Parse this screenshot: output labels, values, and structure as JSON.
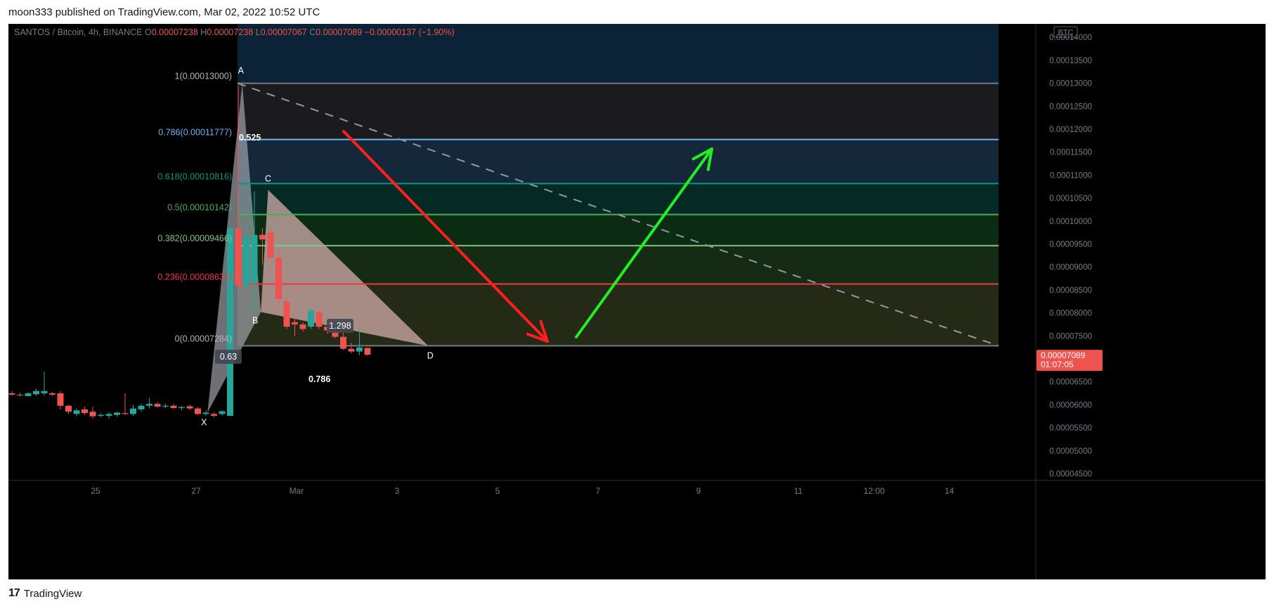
{
  "header": {
    "published_line": "moon333 published on TradingView.com, Mar 02, 2022 10:52 UTC"
  },
  "footer": {
    "logo_mark": "17",
    "brand": "TradingView"
  },
  "chart_data": {
    "type": "candlestick",
    "symbol_line": {
      "symbol": "SANTOS / Bitcoin, 4h, BINANCE",
      "o_label": "O",
      "o_value": "0.00007238",
      "h_label": "H",
      "h_value": "0.00007238",
      "l_label": "L",
      "l_value": "0.00007067",
      "c_label": "C",
      "c_value": "0.00007089",
      "change": "−0.00000137 (−1.90%)"
    },
    "currency_badge": "BTC",
    "y_ticks": [
      4.5e-05,
      5e-05,
      5.5e-05,
      6e-05,
      6.5e-05,
      7e-05,
      7.5e-05,
      8e-05,
      8.5e-05,
      9e-05,
      9.5e-05,
      0.0001,
      0.000105,
      0.00011,
      0.000115,
      0.00012,
      0.000125,
      0.00013,
      0.000135,
      0.00014
    ],
    "y_tick_labels": [
      "0.00004500",
      "0.00005000",
      "0.00005500",
      "0.00006000",
      "0.00006500",
      "0.00007000",
      "0.00007500",
      "0.00008000",
      "0.00008500",
      "0.00009000",
      "0.00009500",
      "0.00010000",
      "0.00010500",
      "0.00011000",
      "0.00011500",
      "0.00012000",
      "0.00012500",
      "0.00013000",
      "0.00013500",
      "0.00014000"
    ],
    "x_tick_labels": [
      "25",
      "27",
      "Mar",
      "3",
      "5",
      "7",
      "9",
      "11",
      "12:00",
      "14"
    ],
    "last_price": {
      "value": "0.00007089",
      "countdown": "01:07:05",
      "price": 7.089e-05
    },
    "fib_levels": [
      {
        "ratio": "1",
        "label": "1(0.00013000)",
        "price": 0.00013,
        "color": "#787b86"
      },
      {
        "ratio": "0.786",
        "label": "0.786(0.00011777)",
        "price": 0.00011777,
        "color": "#64b5f6"
      },
      {
        "ratio": "0.618",
        "label": "0.618(0.00010816)",
        "price": 0.00010816,
        "color": "#089981"
      },
      {
        "ratio": "0.5",
        "label": "0.5(0.00010142)",
        "price": 0.00010142,
        "color": "#4caf50"
      },
      {
        "ratio": "0.382",
        "label": "0.382(0.00009466)",
        "price": 9.466e-05,
        "color": "#81c784"
      },
      {
        "ratio": "0.236",
        "label": "0.236(0.00008631)",
        "price": 8.631e-05,
        "color": "#f23645"
      },
      {
        "ratio": "0",
        "label": "0(0.00007284)",
        "price": 7.284e-05,
        "color": "#787b86"
      }
    ],
    "pattern_points": [
      {
        "name": "X",
        "label": "X",
        "price": 5.83e-05
      },
      {
        "name": "A",
        "label": "A",
        "price": 0.00013
      },
      {
        "name": "B",
        "label": "B",
        "price": 8.02e-05
      },
      {
        "name": "C",
        "label": "C",
        "price": 0.0001068
      },
      {
        "name": "D",
        "label": "D",
        "price": 7.284e-05
      }
    ],
    "pattern_ratios": [
      {
        "label": "0.525"
      },
      {
        "label": "0.63"
      },
      {
        "label": "1.298"
      },
      {
        "label": "0.786"
      }
    ],
    "candles": [
      {
        "o": 6.25e-05,
        "h": 6.3e-05,
        "l": 6.2e-05,
        "c": 6.22e-05
      },
      {
        "o": 6.22e-05,
        "h": 6.26e-05,
        "l": 6.19e-05,
        "c": 6.21e-05
      },
      {
        "o": 6.19e-05,
        "h": 6.28e-05,
        "l": 6.18e-05,
        "c": 6.25e-05
      },
      {
        "o": 6.23e-05,
        "h": 6.35e-05,
        "l": 6.2e-05,
        "c": 6.3e-05
      },
      {
        "o": 6.25e-05,
        "h": 6.72e-05,
        "l": 6.2e-05,
        "c": 6.3e-05
      },
      {
        "o": 6.25e-05,
        "h": 6.28e-05,
        "l": 6.2e-05,
        "c": 6.22e-05
      },
      {
        "o": 6.25e-05,
        "h": 6.3e-05,
        "l": 5.9e-05,
        "c": 5.98e-05
      },
      {
        "o": 5.98e-05,
        "h": 6e-05,
        "l": 5.8e-05,
        "c": 5.85e-05
      },
      {
        "o": 5.8e-05,
        "h": 5.92e-05,
        "l": 5.75e-05,
        "c": 5.88e-05
      },
      {
        "o": 5.9e-05,
        "h": 5.96e-05,
        "l": 5.78e-05,
        "c": 5.82e-05
      },
      {
        "o": 5.85e-05,
        "h": 5.96e-05,
        "l": 5.7e-05,
        "c": 5.75e-05
      },
      {
        "o": 5.76e-05,
        "h": 5.82e-05,
        "l": 5.73e-05,
        "c": 5.78e-05
      },
      {
        "o": 5.76e-05,
        "h": 5.84e-05,
        "l": 5.7e-05,
        "c": 5.8e-05
      },
      {
        "o": 5.78e-05,
        "h": 5.85e-05,
        "l": 5.74e-05,
        "c": 5.83e-05
      },
      {
        "o": 5.82e-05,
        "h": 6.25e-05,
        "l": 5.78e-05,
        "c": 5.8e-05
      },
      {
        "o": 5.8e-05,
        "h": 6e-05,
        "l": 5.76e-05,
        "c": 5.92e-05
      },
      {
        "o": 5.9e-05,
        "h": 6.03e-05,
        "l": 5.85e-05,
        "c": 5.98e-05
      },
      {
        "o": 5.98e-05,
        "h": 6.15e-05,
        "l": 5.92e-05,
        "c": 6.02e-05
      },
      {
        "o": 6.02e-05,
        "h": 6.06e-05,
        "l": 5.94e-05,
        "c": 5.96e-05
      },
      {
        "o": 5.96e-05,
        "h": 6.03e-05,
        "l": 5.93e-05,
        "c": 5.98e-05
      },
      {
        "o": 5.98e-05,
        "h": 6.02e-05,
        "l": 5.91e-05,
        "c": 5.93e-05
      },
      {
        "o": 5.93e-05,
        "h": 5.98e-05,
        "l": 5.88e-05,
        "c": 5.95e-05
      },
      {
        "o": 5.97e-05,
        "h": 6e-05,
        "l": 5.88e-05,
        "c": 5.92e-05
      },
      {
        "o": 5.92e-05,
        "h": 5.95e-05,
        "l": 5.78e-05,
        "c": 5.8e-05
      },
      {
        "o": 5.8e-05,
        "h": 5.88e-05,
        "l": 5.76e-05,
        "c": 5.83e-05
      },
      {
        "o": 5.8e-05,
        "h": 5.84e-05,
        "l": 5.73e-05,
        "c": 5.76e-05
      },
      {
        "o": 5.8e-05,
        "h": 5.88e-05,
        "l": 5.77e-05,
        "c": 5.86e-05
      },
      {
        "o": 5.76e-05,
        "h": 9.85e-05,
        "l": 5.75e-05,
        "c": 9.85e-05
      },
      {
        "o": 9.85e-05,
        "h": 0.0001295,
        "l": 8.55e-05,
        "c": 8.6e-05
      },
      {
        "o": 8.6e-05,
        "h": 9.9e-05,
        "l": 8.5e-05,
        "c": 9.65e-05
      },
      {
        "o": 8.65e-05,
        "h": 0.0001065,
        "l": 8.02e-05,
        "c": 9.7e-05
      },
      {
        "o": 9.7e-05,
        "h": 9.85e-05,
        "l": 9.05e-05,
        "c": 9.6e-05
      },
      {
        "o": 9.75e-05,
        "h": 9.85e-05,
        "l": 9.15e-05,
        "c": 9.2e-05
      },
      {
        "o": 9.2e-05,
        "h": 9.4e-05,
        "l": 8.2e-05,
        "c": 8.3e-05
      },
      {
        "o": 8.25e-05,
        "h": 8.35e-05,
        "l": 7.65e-05,
        "c": 7.7e-05
      },
      {
        "o": 7.8e-05,
        "h": 7.9e-05,
        "l": 7.5e-05,
        "c": 7.75e-05
      },
      {
        "o": 7.75e-05,
        "h": 7.8e-05,
        "l": 7.6e-05,
        "c": 7.65e-05
      },
      {
        "o": 7.7e-05,
        "h": 8.1e-05,
        "l": 7.65e-05,
        "c": 8.05e-05
      },
      {
        "o": 8.02e-05,
        "h": 8.05e-05,
        "l": 7.65e-05,
        "c": 7.7e-05
      },
      {
        "o": 7.7e-05,
        "h": 7.75e-05,
        "l": 7.55e-05,
        "c": 7.62e-05
      },
      {
        "o": 7.6e-05,
        "h": 7.75e-05,
        "l": 7.45e-05,
        "c": 7.48e-05
      },
      {
        "o": 7.48e-05,
        "h": 7.6e-05,
        "l": 7.2e-05,
        "c": 7.22e-05
      },
      {
        "o": 7.22e-05,
        "h": 7.35e-05,
        "l": 7.12e-05,
        "c": 7.16e-05
      },
      {
        "o": 7.16e-05,
        "h": 7.65e-05,
        "l": 7.08e-05,
        "c": 7.25e-05
      },
      {
        "o": 7.24e-05,
        "h": 7.24e-05,
        "l": 7.07e-05,
        "c": 7.09e-05
      }
    ],
    "annotations": [
      {
        "type": "arrow-down",
        "color": "#ff1e1e"
      },
      {
        "type": "arrow-up",
        "color": "#22ee22"
      },
      {
        "type": "dashed-trendline",
        "color": "#787b86"
      }
    ],
    "colors": {
      "background": "#000000",
      "up": "#26a69a",
      "down": "#ef5350",
      "axis_text": "#787b86"
    }
  }
}
